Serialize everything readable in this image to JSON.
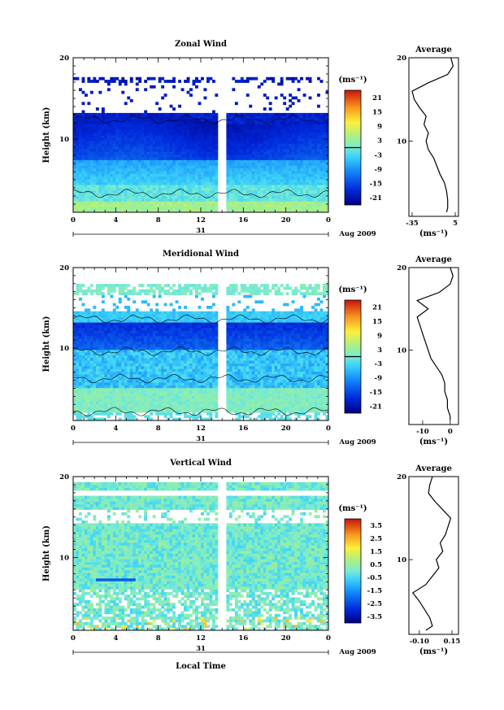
{
  "figure": {
    "x_label": "Local Time",
    "date_label": "Aug 2009",
    "day_label": "31",
    "units_label": "(ms⁻¹)",
    "unit_axis_label": "(ms⁻¹)",
    "average_title": "Average"
  },
  "chart_data": [
    {
      "type": "heatmap",
      "title": "Zonal Wind",
      "ylabel": "Height (km)",
      "xlabel": "Local Time",
      "x_ticks": [
        "0",
        "4",
        "8",
        "12",
        "16",
        "20",
        "0"
      ],
      "xlim": [
        0,
        24
      ],
      "y_ticks": [
        "10",
        "20"
      ],
      "ylim": [
        1,
        20
      ],
      "gap_hours": [
        13.8,
        14.2
      ],
      "colorbar": {
        "ticks": [
          "21",
          "15",
          "9",
          "3",
          "-3",
          "-9",
          "-15",
          "-21"
        ],
        "range": [
          -24,
          24
        ],
        "zero_line": true
      },
      "profile": {
        "title": "Average",
        "x_ticks": [
          "-35",
          "5"
        ],
        "xlim": [
          -38,
          8
        ],
        "xlabel": "(ms⁻¹)",
        "heights": [
          1.5,
          2,
          3,
          4,
          5,
          6,
          7,
          8,
          9,
          10,
          11,
          12,
          13,
          14,
          15,
          16,
          17,
          18,
          19,
          20
        ],
        "values": [
          -3,
          -2,
          -2,
          -3,
          -5,
          -9,
          -12,
          -15,
          -20,
          -22,
          -20,
          -24,
          -22,
          -28,
          -33,
          -35,
          -20,
          -2,
          3,
          1
        ]
      }
    },
    {
      "type": "heatmap",
      "title": "Meridional Wind",
      "ylabel": "Height (km)",
      "xlabel": "Local Time",
      "x_ticks": [
        "0",
        "4",
        "8",
        "12",
        "16",
        "20",
        "0"
      ],
      "xlim": [
        0,
        24
      ],
      "y_ticks": [
        "10",
        "20"
      ],
      "ylim": [
        1,
        20
      ],
      "gap_hours": [
        13.8,
        14.2
      ],
      "colorbar": {
        "ticks": [
          "21",
          "15",
          "9",
          "3",
          "-3",
          "-9",
          "-15",
          "-21"
        ],
        "range": [
          -24,
          24
        ],
        "zero_line": true
      },
      "profile": {
        "title": "Average",
        "x_ticks": [
          "-10",
          "0"
        ],
        "xlim": [
          -15,
          3
        ],
        "xlabel": "(ms⁻¹)",
        "heights": [
          1.5,
          2,
          3,
          4,
          5,
          6,
          7,
          8,
          9,
          10,
          11,
          12,
          13,
          14,
          15,
          16,
          17,
          18,
          19,
          20
        ],
        "values": [
          0,
          0,
          -1,
          -1,
          -2,
          -2,
          -3,
          -5,
          -7,
          -8,
          -9,
          -10,
          -11,
          -12,
          -8,
          -12,
          -4,
          0,
          1,
          0
        ]
      }
    },
    {
      "type": "heatmap",
      "title": "Vertical Wind",
      "ylabel": "Height (km)",
      "xlabel": "Local Time",
      "x_ticks": [
        "0",
        "4",
        "8",
        "12",
        "16",
        "20",
        "0"
      ],
      "xlim": [
        0,
        24
      ],
      "y_ticks": [
        "10",
        "20"
      ],
      "ylim": [
        1,
        20
      ],
      "gap_hours": [
        13.8,
        14.2
      ],
      "colorbar": {
        "ticks": [
          "3.5",
          "2.5",
          "1.5",
          "0.5",
          "-0.5",
          "-1.5",
          "-2.5",
          "-3.5"
        ],
        "range": [
          -4,
          4
        ],
        "zero_line": false
      },
      "profile": {
        "title": "Average",
        "x_ticks": [
          "-0.10",
          "0.15"
        ],
        "xlim": [
          -0.18,
          0.2
        ],
        "xlabel": "(ms⁻¹)",
        "heights": [
          1.5,
          2,
          3,
          4,
          5,
          6,
          7,
          8,
          9,
          10,
          11,
          12,
          13,
          14,
          15,
          16,
          17,
          18,
          19,
          20
        ],
        "values": [
          -0.05,
          0.0,
          -0.02,
          -0.06,
          -0.1,
          -0.15,
          -0.05,
          0.0,
          0.05,
          0.03,
          0.08,
          0.06,
          0.1,
          0.12,
          0.14,
          0.08,
          0.02,
          -0.03,
          -0.02,
          0.0
        ]
      }
    }
  ]
}
